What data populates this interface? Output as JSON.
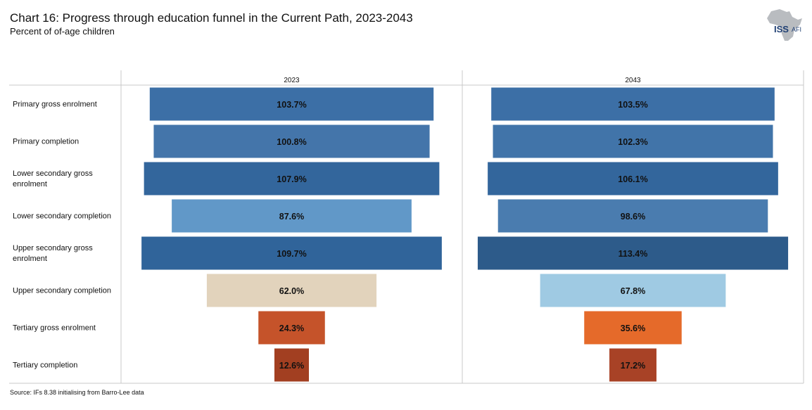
{
  "title": "Chart 16: Progress through education funnel in the Current Path, 2023-2043",
  "subtitle": "Percent of of-age children",
  "source": "Source: IFs 8.38 initialising from Barro-Lee data",
  "logo": {
    "brand": "ISS",
    "sub": "AFI"
  },
  "chart_data": {
    "type": "bar",
    "categories": [
      "Primary gross enrolment",
      "Primary completion",
      "Lower secondary gross enrolment",
      "Lower secondary completion",
      "Upper secondary gross enrolment",
      "Upper secondary completion",
      "Tertiary gross enrolment",
      "Tertiary completion"
    ],
    "category_display": [
      [
        "Primary gross enrolment"
      ],
      [
        "Primary completion"
      ],
      [
        "Lower secondary gross",
        "enrolment"
      ],
      [
        "Lower secondary completion"
      ],
      [
        "Upper secondary gross",
        "enrolment"
      ],
      [
        "Upper secondary completion"
      ],
      [
        "Tertiary gross enrolment"
      ],
      [
        "Tertiary completion"
      ]
    ],
    "series": [
      {
        "name": "2023",
        "values": [
          103.7,
          100.8,
          107.9,
          87.6,
          109.7,
          62.0,
          24.3,
          12.6
        ],
        "labels": [
          "103.7%",
          "100.8%",
          "107.9%",
          "87.6%",
          "109.7%",
          "62.0%",
          "24.3%",
          "12.6%"
        ],
        "colors": [
          "#3c6fa6",
          "#4475aa",
          "#33669c",
          "#6198c8",
          "#30649a",
          "#e2d3bc",
          "#c5532a",
          "#a23f21"
        ]
      },
      {
        "name": "2043",
        "values": [
          103.5,
          102.3,
          106.1,
          98.6,
          113.4,
          67.8,
          35.6,
          17.2
        ],
        "labels": [
          "103.5%",
          "102.3%",
          "106.1%",
          "98.6%",
          "113.4%",
          "67.8%",
          "35.6%",
          "17.2%"
        ],
        "colors": [
          "#3c6fa6",
          "#4174a9",
          "#33669c",
          "#4a7caf",
          "#2d5b8a",
          "#9fcae3",
          "#e56a2a",
          "#a84226"
        ]
      }
    ],
    "xlabel": "",
    "ylabel": "",
    "grid": false,
    "layout": "centered funnel, one panel per year"
  }
}
